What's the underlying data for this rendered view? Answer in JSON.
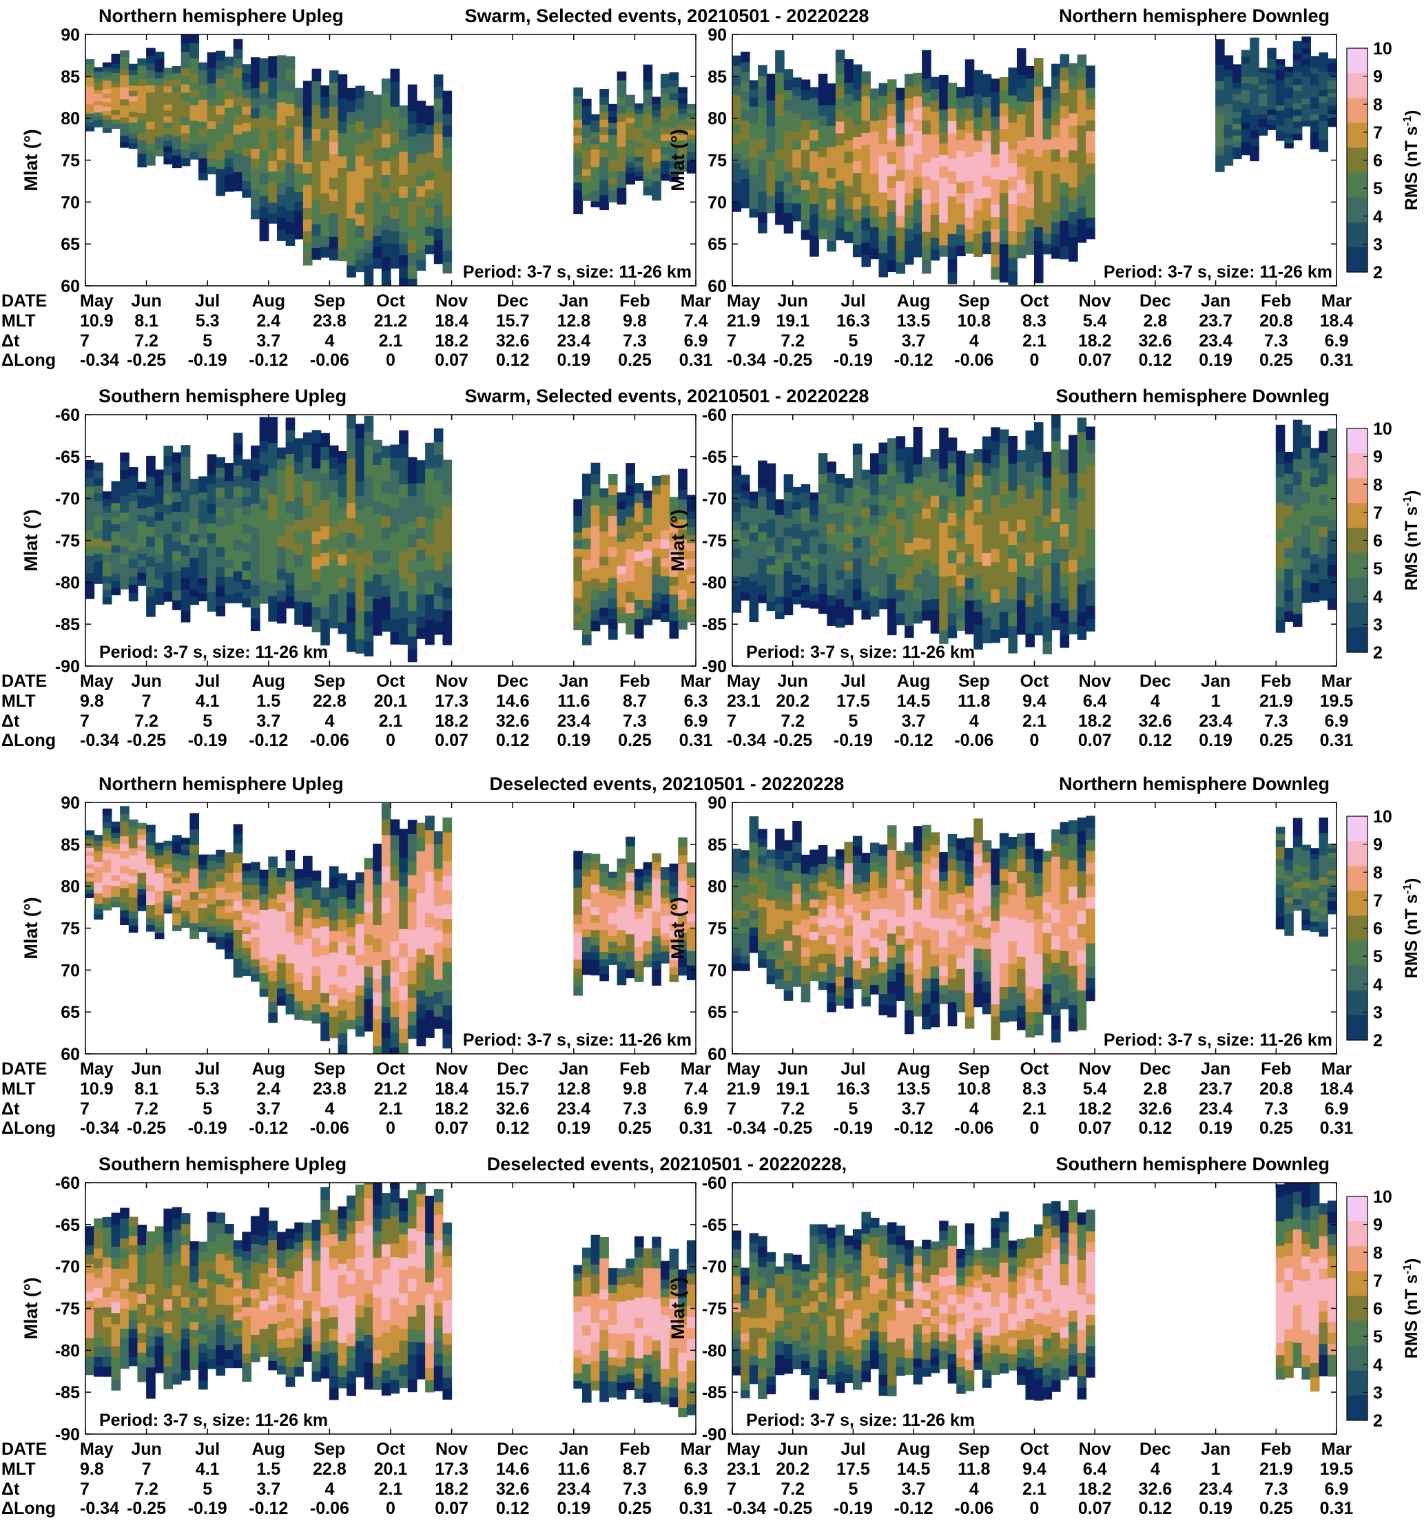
{
  "palette": {
    "levels": [
      2,
      3,
      4,
      5,
      6,
      7,
      8,
      9,
      10
    ],
    "colors": [
      "#0c1f5e",
      "#0f3a66",
      "#1f5266",
      "#3d6b62",
      "#4f7c4e",
      "#7d7a34",
      "#c8913b",
      "#ef9f78",
      "#f6b6c2",
      "#f4c9f2"
    ],
    "contour_line": "#7a5a8a"
  },
  "colorbar": {
    "label": "RMS (nT s",
    "label_sup": "-1",
    "label_close": ")",
    "ticks": [
      "10",
      "9",
      "8",
      "7",
      "6",
      "5",
      "4",
      "3",
      "2"
    ]
  },
  "xaxis_rows": {
    "labels": [
      "DATE",
      "MLT",
      "Δt",
      "ΔLong"
    ],
    "months": [
      "May",
      "Jun",
      "Jul",
      "Aug",
      "Sep",
      "Oct",
      "Nov",
      "Dec",
      "Jan",
      "Feb",
      "Mar"
    ],
    "dt": [
      "7",
      "7.2",
      "5",
      "3.7",
      "4",
      "2.1",
      "18.2",
      "32.6",
      "23.4",
      "7.3",
      "6.9"
    ],
    "dlong": [
      "-0.34",
      "-0.25",
      "-0.19",
      "-0.12",
      "-0.06",
      "0",
      "0.07",
      "0.12",
      "0.19",
      "0.25",
      "0.31"
    ]
  },
  "ylabel": "Mlat (°)",
  "annotation": "Period: 3-7 s, size: 11-26 km",
  "rows": [
    {
      "titles": {
        "left": "Northern hemisphere Upleg",
        "center": "Swarm, Selected events, 20210501 - 20220228",
        "right": "Northern hemisphere Downleg"
      },
      "yticks": [
        "90",
        "85",
        "80",
        "75",
        "70",
        "65",
        "60"
      ],
      "mlt_left": [
        "10.9",
        "8.1",
        "5.3",
        "2.4",
        "23.8",
        "21.2",
        "18.4",
        "15.7",
        "12.8",
        "9.8",
        "7.4"
      ],
      "mlt_right": [
        "21.9",
        "19.1",
        "16.3",
        "13.5",
        "10.8",
        "8.3",
        "5.4",
        "2.8",
        "23.7",
        "20.8",
        "18.4"
      ],
      "annotation_pos": [
        "bottom-right",
        "bottom-right"
      ]
    },
    {
      "titles": {
        "left": "Southern hemisphere Upleg",
        "center": "Swarm, Selected events, 20210501 - 20220228",
        "right": "Southern hemisphere Downleg"
      },
      "yticks": [
        "-60",
        "-65",
        "-70",
        "-75",
        "-80",
        "-85",
        "-90"
      ],
      "mlt_left": [
        "9.8",
        "7",
        "4.1",
        "1.5",
        "22.8",
        "20.1",
        "17.3",
        "14.6",
        "11.6",
        "8.7",
        "6.3"
      ],
      "mlt_right": [
        "23.1",
        "20.2",
        "17.5",
        "14.5",
        "11.8",
        "9.4",
        "6.4",
        "4",
        "1",
        "21.9",
        "19.5"
      ],
      "annotation_pos": [
        "bottom-left",
        "bottom-left"
      ]
    },
    {
      "titles": {
        "left": "Northern hemisphere Upleg",
        "center": "Deselected events, 20210501 - 20220228",
        "right": "Northern hemisphere Downleg"
      },
      "yticks": [
        "90",
        "85",
        "80",
        "75",
        "70",
        "65",
        "60"
      ],
      "mlt_left": [
        "10.9",
        "8.1",
        "5.3",
        "2.4",
        "23.8",
        "21.2",
        "18.4",
        "15.7",
        "12.8",
        "9.8",
        "7.4"
      ],
      "mlt_right": [
        "21.9",
        "19.1",
        "16.3",
        "13.5",
        "10.8",
        "8.3",
        "5.4",
        "2.8",
        "23.7",
        "20.8",
        "18.4"
      ],
      "annotation_pos": [
        "bottom-right",
        "bottom-right"
      ]
    },
    {
      "titles": {
        "left": "Southern hemisphere Upleg",
        "center": "Deselected events, 20210501 - 20220228,",
        "right": "Southern hemisphere Downleg"
      },
      "yticks": [
        "-60",
        "-65",
        "-70",
        "-75",
        "-80",
        "-85",
        "-90"
      ],
      "mlt_left": [
        "9.8",
        "7",
        "4.1",
        "1.5",
        "22.8",
        "20.1",
        "17.3",
        "14.6",
        "11.6",
        "8.7",
        "6.3"
      ],
      "mlt_right": [
        "23.1",
        "20.2",
        "17.5",
        "14.5",
        "11.8",
        "9.4",
        "6.4",
        "4",
        "1",
        "21.9",
        "19.5"
      ],
      "annotation_pos": [
        "bottom-left",
        "bottom-left"
      ]
    }
  ],
  "chart_data": [
    {
      "type": "heatmap",
      "title": "Northern hemisphere Upleg",
      "ylabel": "Mlat (°)",
      "ylim": [
        60,
        90
      ],
      "x_range": [
        "2021-05",
        "2022-03"
      ],
      "colorbar_range": [
        2,
        10
      ],
      "data_coverage": [
        {
          "from": "2021-05",
          "to": "2021-11"
        },
        {
          "from": "2022-01",
          "to": "2022-03"
        }
      ],
      "profile": [
        {
          "month": "May",
          "band": [
            78,
            88
          ],
          "peak_rms": 9
        },
        {
          "month": "Jun",
          "band": [
            76,
            88
          ],
          "peak_rms": 8
        },
        {
          "month": "Jul",
          "band": [
            74,
            88
          ],
          "peak_rms": 7
        },
        {
          "month": "Aug",
          "band": [
            66,
            86
          ],
          "peak_rms": 7
        },
        {
          "month": "Sep",
          "band": [
            62,
            84
          ],
          "peak_rms": 8
        },
        {
          "month": "Oct",
          "band": [
            60,
            84
          ],
          "peak_rms": 7
        },
        {
          "month": "Jan",
          "band": [
            70,
            82
          ],
          "peak_rms": 7
        },
        {
          "month": "Feb",
          "band": [
            72,
            84
          ],
          "peak_rms": 7
        }
      ]
    },
    {
      "type": "heatmap",
      "title": "Northern hemisphere Downleg",
      "ylabel": "Mlat (°)",
      "ylim": [
        60,
        90
      ],
      "x_range": [
        "2021-05",
        "2022-03"
      ],
      "colorbar_range": [
        2,
        10
      ],
      "data_coverage": [
        {
          "from": "2021-05",
          "to": "2021-11"
        },
        {
          "from": "2022-01",
          "to": "2022-03"
        }
      ],
      "profile": [
        {
          "month": "May",
          "band": [
            70,
            86
          ],
          "peak_rms": 6
        },
        {
          "month": "Jun",
          "band": [
            66,
            86
          ],
          "peak_rms": 7
        },
        {
          "month": "Jul",
          "band": [
            64,
            86
          ],
          "peak_rms": 8
        },
        {
          "month": "Aug",
          "band": [
            62,
            86
          ],
          "peak_rms": 10
        },
        {
          "month": "Sep",
          "band": [
            62,
            86
          ],
          "peak_rms": 10
        },
        {
          "month": "Oct",
          "band": [
            62,
            86
          ],
          "peak_rms": 9
        },
        {
          "month": "Feb",
          "band": [
            78,
            88
          ],
          "peak_rms": 4
        }
      ]
    },
    {
      "type": "heatmap",
      "title": "Southern hemisphere Upleg",
      "ylabel": "Mlat (°)",
      "ylim": [
        -90,
        -60
      ],
      "x_range": [
        "2021-05",
        "2022-03"
      ],
      "colorbar_range": [
        2,
        10
      ],
      "data_coverage": [
        {
          "from": "2021-05",
          "to": "2021-11"
        },
        {
          "from": "2022-01",
          "to": "2022-03"
        }
      ],
      "profile": [
        {
          "month": "May",
          "band": [
            -82,
            -68
          ],
          "peak_rms": 6
        },
        {
          "month": "Jun",
          "band": [
            -82,
            -66
          ],
          "peak_rms": 5
        },
        {
          "month": "Jul",
          "band": [
            -84,
            -66
          ],
          "peak_rms": 5
        },
        {
          "month": "Aug",
          "band": [
            -84,
            -62
          ],
          "peak_rms": 6
        },
        {
          "month": "Sep",
          "band": [
            -86,
            -62
          ],
          "peak_rms": 7
        },
        {
          "month": "Oct",
          "band": [
            -88,
            -62
          ],
          "peak_rms": 6
        },
        {
          "month": "Jan",
          "band": [
            -86,
            -68
          ],
          "peak_rms": 8
        },
        {
          "month": "Feb",
          "band": [
            -86,
            -68
          ],
          "peak_rms": 9
        }
      ]
    },
    {
      "type": "heatmap",
      "title": "Southern hemisphere Downleg",
      "ylabel": "Mlat (°)",
      "ylim": [
        -90,
        -60
      ],
      "x_range": [
        "2021-05",
        "2022-03"
      ],
      "colorbar_range": [
        2,
        10
      ],
      "data_coverage": [
        {
          "from": "2021-05",
          "to": "2021-11"
        },
        {
          "from": "2022-02",
          "to": "2022-03"
        }
      ],
      "profile": [
        {
          "month": "May",
          "band": [
            -84,
            -68
          ],
          "peak_rms": 5
        },
        {
          "month": "Jun",
          "band": [
            -84,
            -68
          ],
          "peak_rms": 5
        },
        {
          "month": "Jul",
          "band": [
            -84,
            -66
          ],
          "peak_rms": 6
        },
        {
          "month": "Aug",
          "band": [
            -86,
            -64
          ],
          "peak_rms": 7
        },
        {
          "month": "Sep",
          "band": [
            -88,
            -64
          ],
          "peak_rms": 8
        },
        {
          "month": "Oct",
          "band": [
            -88,
            -62
          ],
          "peak_rms": 7
        },
        {
          "month": "Feb",
          "band": [
            -84,
            -62
          ],
          "peak_rms": 6
        }
      ]
    },
    {
      "type": "heatmap",
      "title": "Northern hemisphere Upleg",
      "ylabel": "Mlat (°)",
      "ylim": [
        60,
        90
      ],
      "x_range": [
        "2021-05",
        "2022-03"
      ],
      "colorbar_range": [
        2,
        10
      ],
      "data_coverage": [
        {
          "from": "2021-05",
          "to": "2021-11"
        },
        {
          "from": "2022-01",
          "to": "2022-03"
        }
      ],
      "profile": [
        {
          "month": "May",
          "band": [
            78,
            88
          ],
          "peak_rms": 10
        },
        {
          "month": "Jun",
          "band": [
            76,
            88
          ],
          "peak_rms": 10
        },
        {
          "month": "Jul",
          "band": [
            74,
            86
          ],
          "peak_rms": 8
        },
        {
          "month": "Aug",
          "band": [
            66,
            84
          ],
          "peak_rms": 10
        },
        {
          "month": "Sep",
          "band": [
            62,
            80
          ],
          "peak_rms": 10
        },
        {
          "month": "Oct",
          "band": [
            60,
            88
          ],
          "peak_rms": 10
        },
        {
          "month": "Jan",
          "band": [
            68,
            84
          ],
          "peak_rms": 9
        },
        {
          "month": "Feb",
          "band": [
            70,
            84
          ],
          "peak_rms": 10
        }
      ]
    },
    {
      "type": "heatmap",
      "title": "Northern hemisphere Downleg",
      "ylabel": "Mlat (°)",
      "ylim": [
        60,
        90
      ],
      "x_range": [
        "2021-05",
        "2022-03"
      ],
      "colorbar_range": [
        2,
        10
      ],
      "data_coverage": [
        {
          "from": "2021-05",
          "to": "2021-11"
        },
        {
          "from": "2022-02",
          "to": "2022-03"
        }
      ],
      "profile": [
        {
          "month": "May",
          "band": [
            72,
            86
          ],
          "peak_rms": 6
        },
        {
          "month": "Jun",
          "band": [
            68,
            86
          ],
          "peak_rms": 8
        },
        {
          "month": "Jul",
          "band": [
            66,
            86
          ],
          "peak_rms": 10
        },
        {
          "month": "Aug",
          "band": [
            64,
            86
          ],
          "peak_rms": 10
        },
        {
          "month": "Sep",
          "band": [
            64,
            86
          ],
          "peak_rms": 10
        },
        {
          "month": "Oct",
          "band": [
            62,
            86
          ],
          "peak_rms": 10
        },
        {
          "month": "Feb",
          "band": [
            76,
            86
          ],
          "peak_rms": 6
        }
      ]
    },
    {
      "type": "heatmap",
      "title": "Southern hemisphere Upleg",
      "ylabel": "Mlat (°)",
      "ylim": [
        -90,
        -60
      ],
      "x_range": [
        "2021-05",
        "2022-03"
      ],
      "colorbar_range": [
        2,
        10
      ],
      "data_coverage": [
        {
          "from": "2021-05",
          "to": "2021-11"
        },
        {
          "from": "2022-01",
          "to": "2022-03"
        }
      ],
      "profile": [
        {
          "month": "May",
          "band": [
            -82,
            -64
          ],
          "peak_rms": 9
        },
        {
          "month": "Jun",
          "band": [
            -84,
            -64
          ],
          "peak_rms": 8
        },
        {
          "month": "Jul",
          "band": [
            -84,
            -66
          ],
          "peak_rms": 7
        },
        {
          "month": "Aug",
          "band": [
            -82,
            -64
          ],
          "peak_rms": 9
        },
        {
          "month": "Sep",
          "band": [
            -84,
            -62
          ],
          "peak_rms": 10
        },
        {
          "month": "Oct",
          "band": [
            -84,
            -60
          ],
          "peak_rms": 10
        },
        {
          "month": "Jan",
          "band": [
            -84,
            -68
          ],
          "peak_rms": 10
        },
        {
          "month": "Feb",
          "band": [
            -86,
            -68
          ],
          "peak_rms": 10
        }
      ]
    },
    {
      "type": "heatmap",
      "title": "Southern hemisphere Downleg",
      "ylabel": "Mlat (°)",
      "ylim": [
        -90,
        -60
      ],
      "x_range": [
        "2021-05",
        "2022-03"
      ],
      "colorbar_range": [
        2,
        10
      ],
      "data_coverage": [
        {
          "from": "2021-05",
          "to": "2021-11"
        },
        {
          "from": "2022-02",
          "to": "2022-03"
        }
      ],
      "profile": [
        {
          "month": "May",
          "band": [
            -84,
            -68
          ],
          "peak_rms": 8
        },
        {
          "month": "Jun",
          "band": [
            -84,
            -68
          ],
          "peak_rms": 7
        },
        {
          "month": "Jul",
          "band": [
            -84,
            -66
          ],
          "peak_rms": 8
        },
        {
          "month": "Aug",
          "band": [
            -84,
            -66
          ],
          "peak_rms": 9
        },
        {
          "month": "Sep",
          "band": [
            -84,
            -66
          ],
          "peak_rms": 10
        },
        {
          "month": "Oct",
          "band": [
            -84,
            -64
          ],
          "peak_rms": 10
        },
        {
          "month": "Feb",
          "band": [
            -84,
            -60
          ],
          "peak_rms": 10
        }
      ]
    }
  ]
}
